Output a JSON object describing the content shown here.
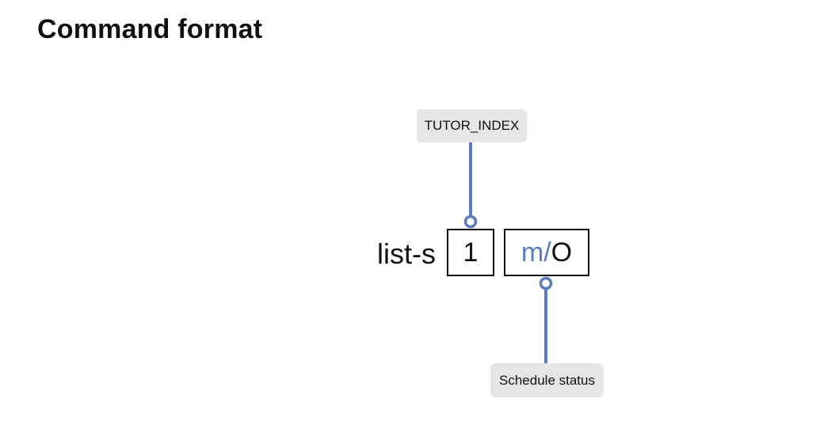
{
  "page": {
    "title": "Command format"
  },
  "diagram": {
    "command_word": "list-s",
    "parameters": [
      {
        "value": "1",
        "annotation": "TUTOR_INDEX"
      },
      {
        "prefix": "m/",
        "value": "O",
        "annotation": "Schedule status"
      }
    ]
  },
  "colors": {
    "connector": "#5a7bbf",
    "prefix_text": "#5a7bbf",
    "label_background": "#e6e6e6",
    "box_border": "#111111"
  }
}
